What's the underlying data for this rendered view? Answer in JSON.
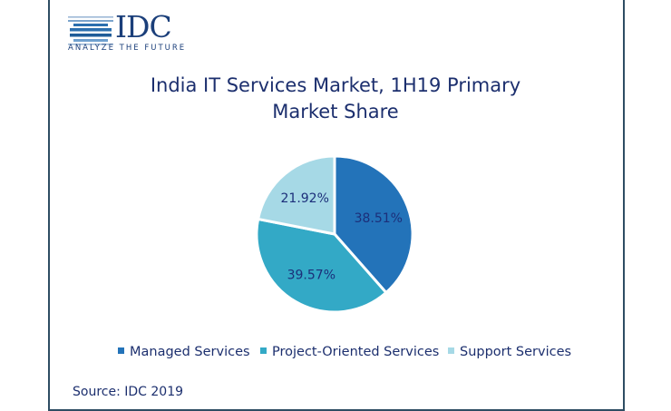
{
  "logo": {
    "text": "IDC",
    "tagline": "ANALYZE THE FUTURE"
  },
  "chart_data": {
    "type": "pie",
    "title": "India IT Services Market,  1H19 Primary Market Share",
    "title_lines": [
      "India IT Services Market,  1H19 Primary",
      "Market Share"
    ],
    "categories": [
      "Managed Services",
      "Project-Oriented Services",
      "Support Services"
    ],
    "values": [
      38.51,
      39.57,
      21.92
    ],
    "labels": [
      "38.51%",
      "39.57%",
      "21.92%"
    ],
    "colors": [
      "#2373b9",
      "#33a9c6",
      "#a6d9e6"
    ],
    "legend_position": "bottom",
    "start_angle": "12 o'clock, clockwise"
  },
  "source": "Source: IDC 2019"
}
